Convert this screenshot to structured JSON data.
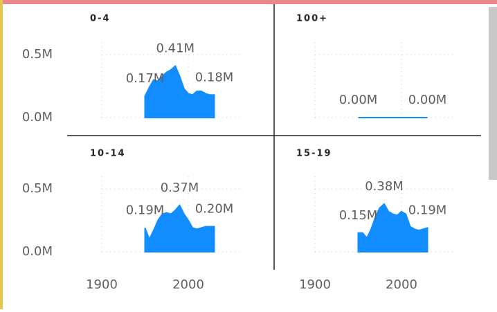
{
  "chart_data": {
    "type": "area",
    "color": "#118DFF",
    "x": [
      1950,
      1955,
      1960,
      1965,
      1970,
      1975,
      1980,
      1985,
      1990,
      1995,
      2000,
      2005,
      2010,
      2015,
      2020,
      2025,
      2030
    ],
    "xlim": [
      1900,
      2060
    ],
    "xticks": [
      1900,
      2000
    ],
    "ylim": [
      0,
      0.6
    ],
    "yticks": [
      {
        "value": 0,
        "label": "0.0M"
      },
      {
        "value": 0.5,
        "label": "0.5M"
      }
    ],
    "panels": [
      {
        "title": "0-4",
        "values": [
          0.17,
          0.24,
          0.3,
          0.29,
          0.33,
          0.36,
          0.38,
          0.41,
          0.33,
          0.23,
          0.19,
          0.18,
          0.21,
          0.21,
          0.19,
          0.18,
          0.18
        ],
        "value_labels": [
          "0.17M",
          null,
          null,
          null,
          null,
          null,
          null,
          "0.41M",
          null,
          null,
          null,
          null,
          null,
          null,
          null,
          null,
          "0.18M"
        ]
      },
      {
        "title": "100+",
        "values": [
          0,
          0,
          0,
          0,
          0,
          0,
          0,
          0,
          0,
          0,
          0,
          0,
          0,
          0,
          0,
          0,
          0
        ],
        "value_labels": [
          "0.00M",
          null,
          null,
          null,
          null,
          null,
          null,
          null,
          null,
          null,
          null,
          null,
          null,
          null,
          null,
          null,
          "0.00M"
        ]
      },
      {
        "title": "10-14",
        "values": [
          0.19,
          0.1,
          0.17,
          0.25,
          0.3,
          0.31,
          0.3,
          0.33,
          0.37,
          0.3,
          0.25,
          0.19,
          0.18,
          0.19,
          0.2,
          0.2,
          0.2
        ],
        "value_labels": [
          "0.19M",
          null,
          null,
          null,
          null,
          null,
          null,
          null,
          "0.37M",
          null,
          null,
          null,
          null,
          null,
          null,
          null,
          "0.20M"
        ]
      },
      {
        "title": "15-19",
        "values": [
          0.15,
          0.15,
          0.11,
          0.18,
          0.28,
          0.35,
          0.38,
          0.32,
          0.3,
          0.29,
          0.32,
          0.3,
          0.2,
          0.18,
          0.17,
          0.18,
          0.19
        ],
        "value_labels": [
          "0.15M",
          null,
          null,
          null,
          null,
          null,
          "0.38M",
          null,
          null,
          null,
          null,
          null,
          null,
          null,
          null,
          null,
          "0.19M"
        ]
      }
    ]
  }
}
